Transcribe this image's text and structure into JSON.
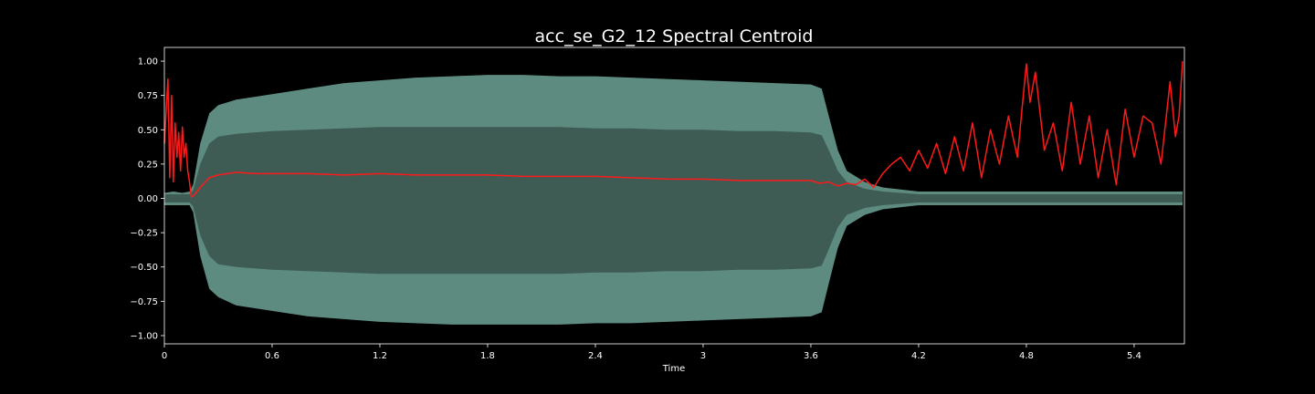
{
  "chart_data": {
    "type": "line",
    "title": "acc_se_G2_12 Spectral Centroid",
    "xlabel": "Time",
    "ylabel": "",
    "xlim": [
      0,
      5.68
    ],
    "ylim": [
      -1.06,
      1.1
    ],
    "xticks": [
      0,
      0.6,
      1.2,
      1.8,
      2.4,
      3,
      3.6,
      4.2,
      4.8,
      5.4
    ],
    "xtick_labels": [
      "0",
      "0.6",
      "1.2",
      "1.8",
      "2.4",
      "3",
      "3.6",
      "4.2",
      "4.8",
      "5.4"
    ],
    "yticks": [
      1.0,
      0.75,
      0.5,
      0.25,
      0.0,
      -0.25,
      -0.5,
      -0.75,
      -1.0
    ],
    "ytick_labels": [
      "1.00",
      "0.75",
      "0.50",
      "0.25",
      "0.00",
      "−0.25",
      "−0.50",
      "−0.75",
      "−1.00"
    ],
    "grid": false,
    "colors": {
      "background": "#000000",
      "axes": "#ffffff",
      "waveform_core": "#3e5b54",
      "waveform_envelope": "#5d8b80",
      "centroid": "#ff1a1a"
    },
    "series": [
      {
        "kind": "waveform-envelope",
        "x": [
          0,
          0.05,
          0.1,
          0.14,
          0.16,
          0.2,
          0.25,
          0.3,
          0.4,
          0.6,
          0.8,
          1.0,
          1.2,
          1.4,
          1.6,
          1.8,
          2.0,
          2.2,
          2.4,
          2.6,
          2.8,
          3.0,
          3.2,
          3.4,
          3.6,
          3.66,
          3.7,
          3.75,
          3.8,
          3.9,
          4.0,
          4.2,
          4.6,
          5.0,
          5.4,
          5.67
        ],
        "upper": [
          0.04,
          0.05,
          0.04,
          0.05,
          0.1,
          0.4,
          0.62,
          0.68,
          0.72,
          0.76,
          0.8,
          0.84,
          0.86,
          0.88,
          0.89,
          0.9,
          0.9,
          0.89,
          0.89,
          0.88,
          0.87,
          0.86,
          0.85,
          0.84,
          0.83,
          0.8,
          0.6,
          0.35,
          0.2,
          0.12,
          0.08,
          0.05,
          0.05,
          0.05,
          0.05,
          0.05
        ],
        "lower": [
          -0.05,
          -0.05,
          -0.05,
          -0.05,
          -0.1,
          -0.42,
          -0.66,
          -0.72,
          -0.78,
          -0.82,
          -0.86,
          -0.88,
          -0.9,
          -0.91,
          -0.92,
          -0.92,
          -0.92,
          -0.92,
          -0.91,
          -0.91,
          -0.9,
          -0.89,
          -0.88,
          -0.87,
          -0.86,
          -0.83,
          -0.62,
          -0.36,
          -0.2,
          -0.12,
          -0.08,
          -0.05,
          -0.05,
          -0.05,
          -0.05,
          -0.05
        ],
        "core_upper": [
          0.03,
          0.03,
          0.03,
          0.03,
          0.06,
          0.25,
          0.4,
          0.45,
          0.47,
          0.49,
          0.5,
          0.51,
          0.52,
          0.52,
          0.52,
          0.52,
          0.52,
          0.52,
          0.51,
          0.51,
          0.5,
          0.5,
          0.49,
          0.49,
          0.48,
          0.46,
          0.35,
          0.2,
          0.12,
          0.07,
          0.05,
          0.03,
          0.03,
          0.03,
          0.03,
          0.03
        ],
        "core_lower": [
          -0.03,
          -0.03,
          -0.03,
          -0.03,
          -0.06,
          -0.27,
          -0.42,
          -0.48,
          -0.5,
          -0.52,
          -0.53,
          -0.54,
          -0.55,
          -0.55,
          -0.55,
          -0.55,
          -0.55,
          -0.55,
          -0.54,
          -0.54,
          -0.53,
          -0.53,
          -0.52,
          -0.52,
          -0.51,
          -0.49,
          -0.37,
          -0.21,
          -0.12,
          -0.07,
          -0.05,
          -0.03,
          -0.03,
          -0.03,
          -0.03,
          -0.03
        ]
      },
      {
        "kind": "centroid",
        "x": [
          0,
          0.02,
          0.03,
          0.04,
          0.05,
          0.06,
          0.07,
          0.08,
          0.09,
          0.1,
          0.11,
          0.12,
          0.13,
          0.14,
          0.15,
          0.17,
          0.2,
          0.25,
          0.3,
          0.35,
          0.4,
          0.5,
          0.6,
          0.8,
          1.0,
          1.2,
          1.4,
          1.6,
          1.8,
          2.0,
          2.2,
          2.4,
          2.6,
          2.8,
          3.0,
          3.2,
          3.4,
          3.6,
          3.65,
          3.7,
          3.75,
          3.8,
          3.85,
          3.9,
          3.95,
          4.0,
          4.05,
          4.1,
          4.15,
          4.2,
          4.25,
          4.3,
          4.35,
          4.4,
          4.45,
          4.5,
          4.55,
          4.6,
          4.65,
          4.7,
          4.75,
          4.8,
          4.82,
          4.85,
          4.9,
          4.95,
          5.0,
          5.05,
          5.1,
          5.15,
          5.2,
          5.25,
          5.3,
          5.35,
          5.4,
          5.45,
          5.5,
          5.55,
          5.6,
          5.63,
          5.65,
          5.67
        ],
        "y": [
          0.4,
          0.87,
          0.15,
          0.75,
          0.12,
          0.55,
          0.3,
          0.48,
          0.2,
          0.52,
          0.3,
          0.4,
          0.2,
          0.12,
          0.01,
          0.03,
          0.08,
          0.15,
          0.17,
          0.18,
          0.19,
          0.18,
          0.18,
          0.18,
          0.17,
          0.18,
          0.17,
          0.17,
          0.17,
          0.16,
          0.16,
          0.16,
          0.15,
          0.14,
          0.14,
          0.13,
          0.13,
          0.13,
          0.11,
          0.12,
          0.09,
          0.11,
          0.1,
          0.14,
          0.08,
          0.18,
          0.25,
          0.3,
          0.2,
          0.35,
          0.22,
          0.4,
          0.18,
          0.45,
          0.2,
          0.55,
          0.15,
          0.5,
          0.25,
          0.6,
          0.3,
          0.98,
          0.7,
          0.92,
          0.35,
          0.55,
          0.2,
          0.7,
          0.25,
          0.6,
          0.15,
          0.5,
          0.1,
          0.65,
          0.3,
          0.6,
          0.55,
          0.25,
          0.85,
          0.45,
          0.6,
          1.0
        ]
      }
    ]
  }
}
